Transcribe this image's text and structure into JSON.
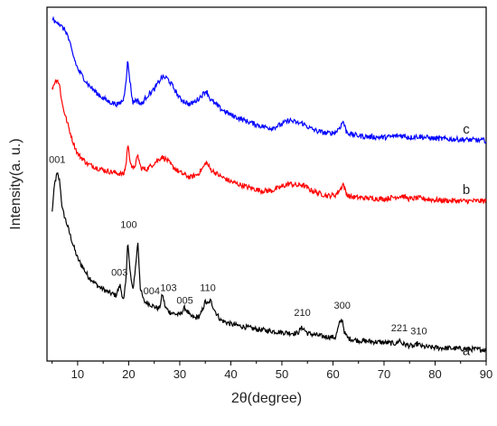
{
  "chart_data": {
    "type": "line",
    "title": "",
    "xlabel": "2θ(degree)",
    "ylabel": "Intensity(a. u.)",
    "xlim": [
      4,
      90
    ],
    "xticks": [
      "10",
      "20",
      "30",
      "40",
      "50",
      "60",
      "70",
      "80",
      "90"
    ],
    "xtick_values": [
      10,
      20,
      30,
      40,
      50,
      60,
      70,
      80,
      90
    ],
    "y_ticks_visible": false,
    "grid": false,
    "legend": "none",
    "series": [
      {
        "label": "a",
        "color": "#000000",
        "x": [
          5.0,
          5.5,
          6.0,
          6.5,
          7.0,
          8.0,
          9.0,
          10.0,
          12.0,
          14.0,
          16.0,
          17.5,
          18.3,
          19.0,
          19.5,
          19.8,
          20.2,
          20.8,
          21.3,
          21.8,
          22.3,
          23.0,
          24.0,
          25.0,
          26.0,
          26.6,
          27.2,
          28.0,
          29.0,
          30.0,
          31.0,
          32.0,
          33.0,
          34.0,
          35.0,
          35.5,
          36.0,
          37.0,
          38.0,
          40.0,
          45.0,
          50.0,
          53.0,
          54.0,
          55.0,
          58.0,
          60.5,
          61.3,
          61.8,
          62.3,
          63.0,
          65.0,
          70.0,
          72.5,
          73.0,
          73.5,
          75.0,
          76.0,
          76.5,
          77.5,
          80.0,
          85.0,
          90.0
        ],
        "y": [
          265,
          293,
          303,
          295,
          268,
          252,
          235,
          220,
          203,
          193,
          187,
          184,
          194,
          178,
          200,
          240,
          210,
          188,
          210,
          236,
          190,
          178,
          176,
          173,
          171,
          185,
          172,
          168,
          166,
          165,
          172,
          164,
          162,
          164,
          178,
          175,
          179,
          168,
          160,
          156,
          151,
          148,
          147,
          153,
          147,
          144,
          143,
          157,
          161,
          147,
          142,
          140,
          138,
          137,
          141,
          137,
          135,
          134,
          137,
          134,
          133,
          132,
          131
        ],
        "peak_labels": [
          {
            "text": "001",
            "x": 6.0,
            "y": 313
          },
          {
            "text": "003",
            "x": 18.2,
            "y": 203
          },
          {
            "text": "100",
            "x": 20.0,
            "y": 250
          },
          {
            "text": "004",
            "x": 24.5,
            "y": 185
          },
          {
            "text": "103",
            "x": 27.8,
            "y": 188
          },
          {
            "text": "005",
            "x": 31.0,
            "y": 176
          },
          {
            "text": "110",
            "x": 35.5,
            "y": 188
          },
          {
            "text": "210",
            "x": 54.0,
            "y": 164
          },
          {
            "text": "300",
            "x": 61.8,
            "y": 171
          },
          {
            "text": "221",
            "x": 73.0,
            "y": 149
          },
          {
            "text": "310",
            "x": 76.8,
            "y": 146
          }
        ]
      },
      {
        "label": "b",
        "color": "#ff0000",
        "x": [
          5.0,
          5.5,
          6.0,
          6.5,
          7.0,
          8.0,
          9.0,
          10.0,
          12.0,
          14.0,
          16.0,
          18.0,
          19.0,
          19.5,
          19.8,
          20.2,
          20.8,
          21.3,
          21.8,
          22.4,
          23.5,
          25.0,
          26.5,
          27.5,
          28.5,
          30.0,
          32.0,
          33.5,
          34.5,
          35.2,
          36.0,
          38.0,
          40.0,
          43.0,
          46.0,
          48.0,
          50.0,
          51.5,
          53.0,
          54.0,
          55.5,
          57.0,
          59.0,
          60.5,
          61.5,
          62.0,
          62.6,
          63.5,
          66.0,
          70.0,
          73.5,
          75.0,
          76.5,
          80.0,
          85.0,
          90.0
        ],
        "y": [
          385,
          392,
          395,
          388,
          370,
          352,
          335,
          322,
          312,
          308,
          305,
          303,
          302,
          312,
          332,
          318,
          306,
          312,
          320,
          308,
          307,
          313,
          319,
          316,
          310,
          304,
          299,
          302,
          308,
          314,
          307,
          300,
          295,
          290,
          286,
          286,
          290,
          293,
          291,
          292,
          287,
          284,
          281,
          282,
          288,
          293,
          283,
          280,
          279,
          278,
          281,
          278,
          279,
          277,
          276,
          276
        ]
      },
      {
        "label": "c",
        "color": "#0000ff",
        "x": [
          5.0,
          5.5,
          6.0,
          6.5,
          7.0,
          7.5,
          8.0,
          9.0,
          10.0,
          12.0,
          14.0,
          16.0,
          18.0,
          19.0,
          19.5,
          19.8,
          20.2,
          20.8,
          21.5,
          22.5,
          23.5,
          25.0,
          26.5,
          27.5,
          28.5,
          30.0,
          32.0,
          33.5,
          34.5,
          35.2,
          36.0,
          38.0,
          40.0,
          43.0,
          46.0,
          48.0,
          50.0,
          51.5,
          53.0,
          54.0,
          55.5,
          57.0,
          59.0,
          60.5,
          61.5,
          62.0,
          62.6,
          63.5,
          66.0,
          70.0,
          73.5,
          75.0,
          76.5,
          80.0,
          85.0,
          90.0
        ],
        "y": [
          455,
          450,
          452,
          448,
          445,
          443,
          438,
          420,
          405,
          390,
          380,
          373,
          370,
          375,
          395,
          413,
          395,
          372,
          375,
          370,
          378,
          385,
          397,
          396,
          389,
          376,
          370,
          375,
          380,
          384,
          375,
          366,
          360,
          354,
          349,
          347,
          351,
          355,
          352,
          352,
          347,
          344,
          342,
          343,
          349,
          354,
          344,
          341,
          339,
          338,
          340,
          338,
          339,
          337,
          336,
          335
        ]
      }
    ]
  }
}
